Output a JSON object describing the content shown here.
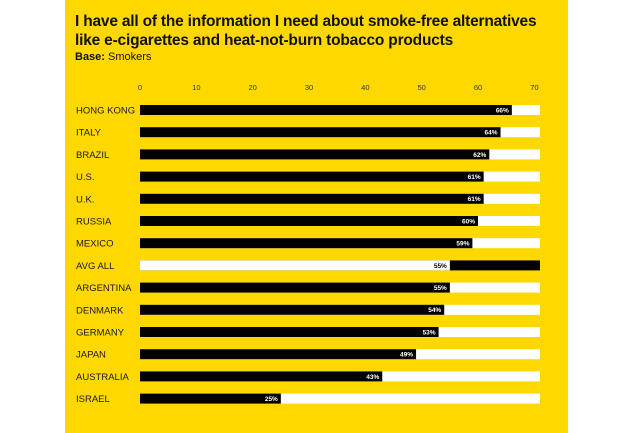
{
  "chart_data": {
    "type": "bar",
    "orientation": "horizontal",
    "title": "I have all of the information I need about smoke-free alternatives like e-cigarettes and heat-not-burn tobacco products",
    "base_label": "Base:",
    "base_value": "Smokers",
    "categories": [
      "HONG KONG",
      "ITALY",
      "BRAZIL",
      "U.S.",
      "U.K.",
      "RUSSIA",
      "MEXICO",
      "AVG ALL",
      "ARGENTINA",
      "DENMARK",
      "GERMANY",
      "JAPAN",
      "AUSTRALIA",
      "ISRAEL"
    ],
    "values": [
      66,
      64,
      62,
      61,
      61,
      60,
      59,
      55,
      55,
      54,
      53,
      49,
      43,
      25
    ],
    "data_labels": [
      "66%",
      "64%",
      "62%",
      "61%",
      "61%",
      "60%",
      "59%",
      "55%",
      "55%",
      "54%",
      "53%",
      "49%",
      "43%",
      "25%"
    ],
    "highlight_category": "AVG ALL",
    "xlim": [
      0,
      71
    ],
    "xticks": [
      0,
      10,
      20,
      30,
      40,
      50,
      60,
      70
    ],
    "grid": false,
    "legend": "none",
    "colors": {
      "background": "#ffd800",
      "bar": "#000000",
      "track": "#ffffff",
      "text": "#111111"
    }
  }
}
